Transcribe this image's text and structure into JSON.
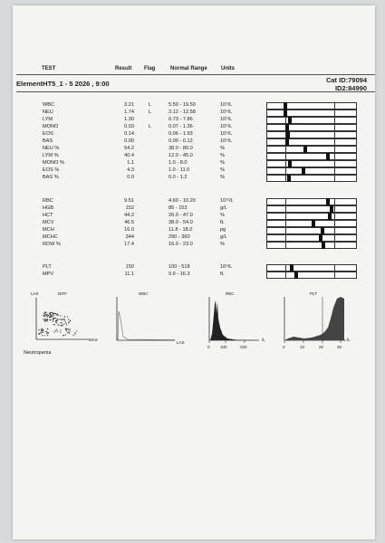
{
  "header": {
    "test": "TEST",
    "result": "Result",
    "flag": "Flag",
    "range": "Normal Range",
    "units": "Units"
  },
  "sample": {
    "title": "ElementHT5_1 - 5  2026 , 9:00",
    "cat_id": "Cat  ID:79094",
    "id2": "ID2:84990"
  },
  "groups": [
    [
      {
        "name": "WBC",
        "result": "3.21",
        "flag": "L",
        "range": "5.50 - 19.50",
        "unit": "10⁹/L",
        "level": 0.2
      },
      {
        "name": "NEU",
        "result": "1.74",
        "flag": "L",
        "range": "3.12 - 12.58",
        "unit": "10⁹/L",
        "level": 0.2
      },
      {
        "name": "LYM",
        "result": "1.30",
        "flag": "",
        "range": "0.73 - 7.86",
        "unit": "10⁹/L",
        "level": 0.25
      },
      {
        "name": "MONO",
        "result": "0.03",
        "flag": "L",
        "range": "0.07 - 1.36",
        "unit": "10⁹/L",
        "level": 0.22
      },
      {
        "name": "EOS",
        "result": "0.14",
        "flag": "",
        "range": "0.06 - 1.93",
        "unit": "10⁹/L",
        "level": 0.23
      },
      {
        "name": "BAS",
        "result": "0.00",
        "flag": "",
        "range": "0.00 - 0.12",
        "unit": "10⁹/L",
        "level": 0.22
      },
      {
        "name": "NEU %",
        "result": "54.2",
        "flag": "",
        "range": "38.0 - 80.0",
        "unit": "%",
        "level": 0.43
      },
      {
        "name": "LYM %",
        "result": "40.4",
        "flag": "",
        "range": "12.0 - 45.0",
        "unit": "%",
        "level": 0.68
      },
      {
        "name": "MONO %",
        "result": "1.1",
        "flag": "",
        "range": "1.0 - 8.0",
        "unit": "%",
        "level": 0.25
      },
      {
        "name": "EOS %",
        "result": "4.3",
        "flag": "",
        "range": "1.0 - 11.0",
        "unit": "%",
        "level": 0.41
      },
      {
        "name": "BAS %",
        "result": "0.0",
        "flag": "",
        "range": "0.0 - 1.2",
        "unit": "%",
        "level": 0.24
      }
    ],
    [
      {
        "name": "RBC",
        "result": "9.51",
        "flag": "",
        "range": "4.60 - 10.20",
        "unit": "10¹²/L",
        "level": 0.68
      },
      {
        "name": "HGB",
        "result": "152",
        "flag": "",
        "range": "85 - 153",
        "unit": "g/L",
        "level": 0.72
      },
      {
        "name": "HCT",
        "result": "44.2",
        "flag": "",
        "range": "26.0 - 47.0",
        "unit": "%",
        "level": 0.7
      },
      {
        "name": "MCV",
        "result": "46.5",
        "flag": "",
        "range": "38.0 - 54.0",
        "unit": "fL",
        "level": 0.52
      },
      {
        "name": "MCH",
        "result": "16.0",
        "flag": "",
        "range": "11.8 - 18.0",
        "unit": "pg",
        "level": 0.62
      },
      {
        "name": "MCHC",
        "result": "344",
        "flag": "",
        "range": "290 - 360",
        "unit": "g/L",
        "level": 0.6
      },
      {
        "name": "RDW %",
        "result": "17.4",
        "flag": "",
        "range": "16.0 - 23.0",
        "unit": "%",
        "level": 0.63
      }
    ],
    [
      {
        "name": "PLT",
        "result": "150",
        "flag": "",
        "range": "100 - 518",
        "unit": "10⁹/L",
        "level": 0.28
      },
      {
        "name": "MPV",
        "result": "11.1",
        "flag": "",
        "range": "9.9 - 16.3",
        "unit": "fL",
        "level": 0.33
      }
    ]
  ],
  "histograms": {
    "diff": {
      "title": "DIFF",
      "y": "LAS",
      "x": "MAS"
    },
    "wbc": {
      "title": "WBC",
      "x": "LAS"
    },
    "rbc": {
      "title": "RBC",
      "unit": "fL",
      "ticks": [
        "0",
        "100",
        "200"
      ]
    },
    "plt": {
      "title": "PLT",
      "unit": "fL",
      "ticks": [
        "0",
        "10",
        "20",
        "30"
      ]
    }
  },
  "note": "Neutropenia"
}
